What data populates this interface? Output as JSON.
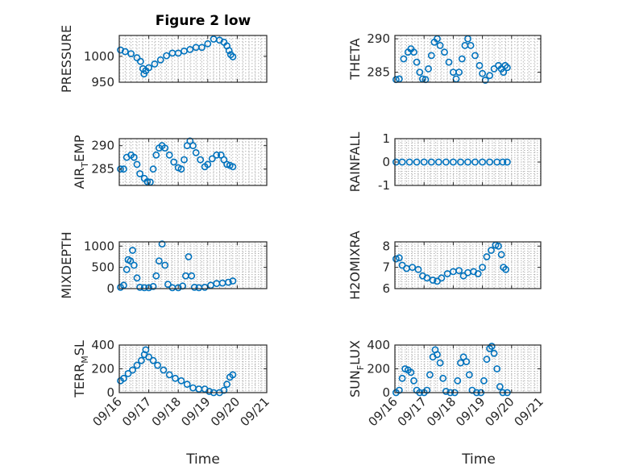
{
  "figure": {
    "title": "Figure 2 low",
    "marker_color": "#0072bd",
    "xlabel": "Time"
  },
  "chart_data": [
    {
      "type": "scatter",
      "ylabel": "PRESSURE",
      "ylabel_sub": "",
      "ylabel_tail": "",
      "ylim": [
        950,
        1040
      ],
      "yticks": [
        950,
        1000
      ],
      "xlim": [
        0,
        5
      ],
      "xticks": [
        0,
        1,
        2,
        3,
        4,
        5
      ],
      "xticklabels": [
        "09/16",
        "09/17",
        "09/18",
        "09/19",
        "09/20",
        "09/21"
      ],
      "show_xticklabels": false,
      "grid": true,
      "points": [
        [
          0.04,
          1012
        ],
        [
          0.2,
          1009
        ],
        [
          0.4,
          1005
        ],
        [
          0.6,
          997
        ],
        [
          0.72,
          990
        ],
        [
          0.8,
          976
        ],
        [
          0.84,
          966
        ],
        [
          0.9,
          972
        ],
        [
          1.0,
          978
        ],
        [
          1.2,
          985
        ],
        [
          1.4,
          993
        ],
        [
          1.6,
          1001
        ],
        [
          1.8,
          1006
        ],
        [
          2.0,
          1006
        ],
        [
          2.2,
          1010
        ],
        [
          2.4,
          1013
        ],
        [
          2.6,
          1017
        ],
        [
          2.8,
          1017
        ],
        [
          3.0,
          1024
        ],
        [
          3.2,
          1033
        ],
        [
          3.4,
          1031
        ],
        [
          3.55,
          1027
        ],
        [
          3.65,
          1020
        ],
        [
          3.72,
          1011
        ],
        [
          3.78,
          1003
        ],
        [
          3.85,
          999
        ]
      ]
    },
    {
      "type": "scatter",
      "ylabel": "THETA",
      "ylabel_sub": "",
      "ylabel_tail": "",
      "ylim": [
        283.5,
        290.5
      ],
      "yticks": [
        285,
        290
      ],
      "xlim": [
        0,
        5
      ],
      "xticks": [
        0,
        1,
        2,
        3,
        4,
        5
      ],
      "xticklabels": [
        "09/16",
        "09/17",
        "09/18",
        "09/19",
        "09/20",
        "09/21"
      ],
      "show_xticklabels": false,
      "grid": true,
      "points": [
        [
          0.04,
          283.9
        ],
        [
          0.15,
          284
        ],
        [
          0.3,
          287
        ],
        [
          0.45,
          288
        ],
        [
          0.55,
          288.5
        ],
        [
          0.65,
          288
        ],
        [
          0.75,
          286.5
        ],
        [
          0.85,
          285
        ],
        [
          0.95,
          284
        ],
        [
          1.05,
          283.9
        ],
        [
          1.15,
          285.5
        ],
        [
          1.25,
          287.5
        ],
        [
          1.35,
          289.5
        ],
        [
          1.45,
          290
        ],
        [
          1.55,
          289
        ],
        [
          1.7,
          288
        ],
        [
          1.85,
          286.5
        ],
        [
          2.0,
          285
        ],
        [
          2.1,
          284
        ],
        [
          2.2,
          285
        ],
        [
          2.3,
          287
        ],
        [
          2.4,
          289
        ],
        [
          2.5,
          290
        ],
        [
          2.6,
          289
        ],
        [
          2.75,
          287.5
        ],
        [
          2.9,
          286
        ],
        [
          3.0,
          284.8
        ],
        [
          3.1,
          283.8
        ],
        [
          3.25,
          284.5
        ],
        [
          3.4,
          285.5
        ],
        [
          3.55,
          286
        ],
        [
          3.65,
          285.5
        ],
        [
          3.72,
          285
        ],
        [
          3.78,
          286
        ],
        [
          3.85,
          285.7
        ]
      ]
    },
    {
      "type": "scatter",
      "ylabel": "AIR",
      "ylabel_sub": "T",
      "ylabel_tail": "EMP",
      "ylim": [
        281.5,
        291.5
      ],
      "yticks": [
        285,
        290
      ],
      "xlim": [
        0,
        5
      ],
      "xticks": [
        0,
        1,
        2,
        3,
        4,
        5
      ],
      "xticklabels": [
        "09/16",
        "09/17",
        "09/18",
        "09/19",
        "09/20",
        "09/21"
      ],
      "show_xticklabels": false,
      "grid": true,
      "points": [
        [
          0.04,
          285
        ],
        [
          0.15,
          285
        ],
        [
          0.25,
          287.5
        ],
        [
          0.4,
          288
        ],
        [
          0.5,
          287.5
        ],
        [
          0.6,
          286
        ],
        [
          0.7,
          284
        ],
        [
          0.85,
          283
        ],
        [
          0.95,
          282.3
        ],
        [
          1.05,
          282.2
        ],
        [
          1.15,
          285
        ],
        [
          1.25,
          288
        ],
        [
          1.35,
          289.5
        ],
        [
          1.45,
          290
        ],
        [
          1.55,
          289.5
        ],
        [
          1.7,
          288
        ],
        [
          1.85,
          286.5
        ],
        [
          2.0,
          285.3
        ],
        [
          2.1,
          285
        ],
        [
          2.2,
          287
        ],
        [
          2.3,
          290
        ],
        [
          2.4,
          291
        ],
        [
          2.5,
          290
        ],
        [
          2.6,
          288.5
        ],
        [
          2.75,
          287
        ],
        [
          2.9,
          285.5
        ],
        [
          3.0,
          286
        ],
        [
          3.15,
          287.2
        ],
        [
          3.3,
          288
        ],
        [
          3.45,
          288
        ],
        [
          3.55,
          287
        ],
        [
          3.65,
          286
        ],
        [
          3.75,
          285.8
        ],
        [
          3.85,
          285.5
        ]
      ]
    },
    {
      "type": "scatter",
      "ylabel": "RAINFALL",
      "ylabel_sub": "",
      "ylabel_tail": "",
      "ylim": [
        -1,
        1
      ],
      "yticks": [
        -1,
        0,
        1
      ],
      "xlim": [
        0,
        5
      ],
      "xticks": [
        0,
        1,
        2,
        3,
        4,
        5
      ],
      "xticklabels": [
        "09/16",
        "09/17",
        "09/18",
        "09/19",
        "09/20",
        "09/21"
      ],
      "show_xticklabels": false,
      "grid": true,
      "points": [
        [
          0.04,
          0
        ],
        [
          0.25,
          0
        ],
        [
          0.5,
          0
        ],
        [
          0.75,
          0
        ],
        [
          1.0,
          0
        ],
        [
          1.25,
          0
        ],
        [
          1.5,
          0
        ],
        [
          1.75,
          0
        ],
        [
          2.0,
          0
        ],
        [
          2.25,
          0
        ],
        [
          2.5,
          0
        ],
        [
          2.75,
          0
        ],
        [
          3.0,
          0
        ],
        [
          3.25,
          0
        ],
        [
          3.5,
          0
        ],
        [
          3.7,
          0
        ],
        [
          3.85,
          0
        ]
      ]
    },
    {
      "type": "scatter",
      "ylabel": "MIXDEPTH",
      "ylabel_sub": "",
      "ylabel_tail": "",
      "ylim": [
        0,
        1100
      ],
      "yticks": [
        0,
        500,
        1000
      ],
      "xlim": [
        0,
        5
      ],
      "xticks": [
        0,
        1,
        2,
        3,
        4,
        5
      ],
      "xticklabels": [
        "09/16",
        "09/17",
        "09/18",
        "09/19",
        "09/20",
        "09/21"
      ],
      "show_xticklabels": false,
      "grid": true,
      "points": [
        [
          0.04,
          30
        ],
        [
          0.15,
          80
        ],
        [
          0.25,
          450
        ],
        [
          0.3,
          680
        ],
        [
          0.38,
          650
        ],
        [
          0.45,
          900
        ],
        [
          0.5,
          550
        ],
        [
          0.6,
          250
        ],
        [
          0.7,
          30
        ],
        [
          0.85,
          20
        ],
        [
          1.0,
          20
        ],
        [
          1.15,
          50
        ],
        [
          1.25,
          300
        ],
        [
          1.35,
          650
        ],
        [
          1.45,
          1050
        ],
        [
          1.55,
          550
        ],
        [
          1.65,
          100
        ],
        [
          1.8,
          20
        ],
        [
          2.0,
          20
        ],
        [
          2.15,
          60
        ],
        [
          2.25,
          300
        ],
        [
          2.35,
          750
        ],
        [
          2.45,
          300
        ],
        [
          2.55,
          30
        ],
        [
          2.7,
          20
        ],
        [
          2.9,
          30
        ],
        [
          3.1,
          80
        ],
        [
          3.3,
          120
        ],
        [
          3.5,
          130
        ],
        [
          3.7,
          150
        ],
        [
          3.85,
          180
        ]
      ]
    },
    {
      "type": "scatter",
      "ylabel": "H2OMIXRA",
      "ylabel_sub": "",
      "ylabel_tail": "",
      "ylim": [
        6,
        8.2
      ],
      "yticks": [
        6,
        7,
        8
      ],
      "xlim": [
        0,
        5
      ],
      "xticks": [
        0,
        1,
        2,
        3,
        4,
        5
      ],
      "xticklabels": [
        "09/16",
        "09/17",
        "09/18",
        "09/19",
        "09/20",
        "09/21"
      ],
      "show_xticklabels": false,
      "grid": true,
      "points": [
        [
          0.04,
          7.4
        ],
        [
          0.15,
          7.45
        ],
        [
          0.25,
          7.1
        ],
        [
          0.4,
          6.95
        ],
        [
          0.6,
          7.0
        ],
        [
          0.8,
          6.9
        ],
        [
          0.95,
          6.6
        ],
        [
          1.1,
          6.5
        ],
        [
          1.3,
          6.4
        ],
        [
          1.45,
          6.35
        ],
        [
          1.6,
          6.5
        ],
        [
          1.8,
          6.7
        ],
        [
          2.0,
          6.8
        ],
        [
          2.2,
          6.85
        ],
        [
          2.35,
          6.6
        ],
        [
          2.5,
          6.75
        ],
        [
          2.7,
          6.8
        ],
        [
          2.85,
          6.7
        ],
        [
          3.0,
          7.0
        ],
        [
          3.15,
          7.5
        ],
        [
          3.3,
          7.8
        ],
        [
          3.45,
          8.05
        ],
        [
          3.55,
          8.0
        ],
        [
          3.65,
          7.6
        ],
        [
          3.72,
          7.0
        ],
        [
          3.8,
          6.9
        ]
      ]
    },
    {
      "type": "scatter",
      "ylabel": "TERR",
      "ylabel_sub": "M",
      "ylabel_tail": "SL",
      "ylim": [
        0,
        400
      ],
      "yticks": [
        0,
        200,
        400
      ],
      "xlim": [
        0,
        5
      ],
      "xticks": [
        0,
        1,
        2,
        3,
        4,
        5
      ],
      "xticklabels": [
        "09/16",
        "09/17",
        "09/18",
        "09/19",
        "09/20",
        "09/21"
      ],
      "show_xticklabels": true,
      "grid": true,
      "points": [
        [
          0.04,
          100
        ],
        [
          0.15,
          120
        ],
        [
          0.3,
          160
        ],
        [
          0.45,
          190
        ],
        [
          0.6,
          230
        ],
        [
          0.75,
          270
        ],
        [
          0.85,
          320
        ],
        [
          0.9,
          360
        ],
        [
          1.0,
          300
        ],
        [
          1.15,
          270
        ],
        [
          1.3,
          230
        ],
        [
          1.5,
          190
        ],
        [
          1.7,
          150
        ],
        [
          1.9,
          120
        ],
        [
          2.1,
          100
        ],
        [
          2.3,
          70
        ],
        [
          2.5,
          40
        ],
        [
          2.7,
          30
        ],
        [
          2.9,
          30
        ],
        [
          3.05,
          10
        ],
        [
          3.2,
          0
        ],
        [
          3.4,
          0
        ],
        [
          3.55,
          20
        ],
        [
          3.65,
          70
        ],
        [
          3.75,
          130
        ],
        [
          3.85,
          150
        ]
      ]
    },
    {
      "type": "scatter",
      "ylabel": "SUN",
      "ylabel_sub": "F",
      "ylabel_tail": "LUX",
      "ylim": [
        0,
        400
      ],
      "yticks": [
        0,
        200,
        400
      ],
      "xlim": [
        0,
        5
      ],
      "xticks": [
        0,
        1,
        2,
        3,
        4,
        5
      ],
      "xticklabels": [
        "09/16",
        "09/17",
        "09/18",
        "09/19",
        "09/20",
        "09/21"
      ],
      "show_xticklabels": true,
      "grid": true,
      "points": [
        [
          0.04,
          0
        ],
        [
          0.15,
          20
        ],
        [
          0.25,
          120
        ],
        [
          0.35,
          200
        ],
        [
          0.45,
          190
        ],
        [
          0.55,
          170
        ],
        [
          0.65,
          100
        ],
        [
          0.75,
          20
        ],
        [
          0.85,
          0
        ],
        [
          1.0,
          0
        ],
        [
          1.1,
          20
        ],
        [
          1.2,
          150
        ],
        [
          1.3,
          300
        ],
        [
          1.38,
          360
        ],
        [
          1.45,
          320
        ],
        [
          1.55,
          250
        ],
        [
          1.65,
          120
        ],
        [
          1.75,
          10
        ],
        [
          1.9,
          0
        ],
        [
          2.05,
          0
        ],
        [
          2.15,
          100
        ],
        [
          2.25,
          250
        ],
        [
          2.35,
          300
        ],
        [
          2.45,
          260
        ],
        [
          2.55,
          150
        ],
        [
          2.65,
          20
        ],
        [
          2.8,
          0
        ],
        [
          2.95,
          0
        ],
        [
          3.05,
          100
        ],
        [
          3.15,
          280
        ],
        [
          3.25,
          370
        ],
        [
          3.32,
          390
        ],
        [
          3.4,
          330
        ],
        [
          3.5,
          200
        ],
        [
          3.6,
          50
        ],
        [
          3.7,
          0
        ],
        [
          3.85,
          0
        ]
      ]
    }
  ]
}
